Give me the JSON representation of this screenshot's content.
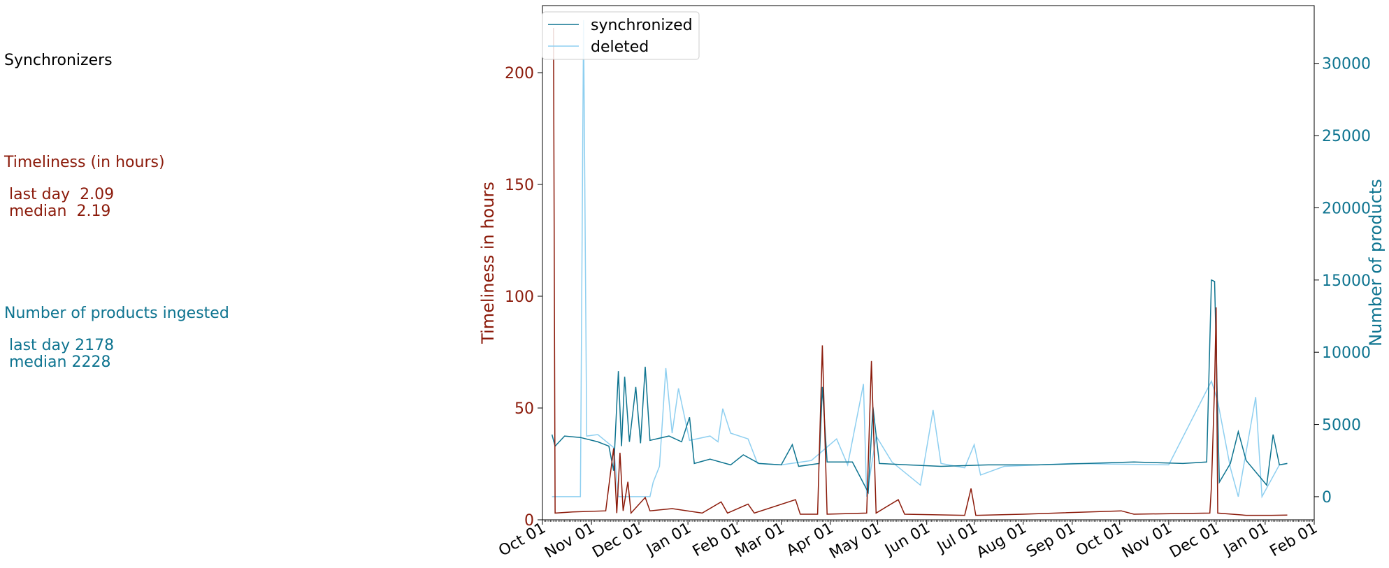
{
  "sidebar": {
    "title": "Synchronizers",
    "timeliness": {
      "title": "Timeliness (in hours)",
      "last_day": " last day  2.09",
      "median": " median  2.19"
    },
    "products": {
      "title": "Number of products ingested",
      "last_day": " last day 2178",
      "median": " median 2228"
    }
  },
  "colors": {
    "timeliness": "#8b1a0a",
    "synchronized": "#0e7490",
    "deleted": "#8ecff0"
  },
  "chart_data": {
    "type": "line",
    "xlabel": "",
    "x_ticks": [
      "Oct 01",
      "Nov 01",
      "Dec 01",
      "Jan 01",
      "Feb 01",
      "Mar 01",
      "Apr 01",
      "May 01",
      "Jun 01",
      "Jul 01",
      "Aug 01",
      "Sep 01",
      "Oct 01",
      "Nov 01",
      "Dec 01",
      "Jan 01",
      "Feb 01"
    ],
    "x_range": [
      "2022-10-01",
      "2024-02-01"
    ],
    "legend": {
      "placement": "top-left",
      "entries": [
        "synchronized",
        "deleted"
      ]
    },
    "left_axis": {
      "label": "Timeliness in hours",
      "ylim": [
        0,
        230
      ],
      "ticks": [
        0,
        50,
        100,
        150,
        200
      ],
      "series": {
        "name": "",
        "points": [
          [
            "2022-10-08",
            220
          ],
          [
            "2022-10-09",
            3
          ],
          [
            "2022-10-20",
            3.5
          ],
          [
            "2022-11-10",
            4
          ],
          [
            "2022-11-15",
            32
          ],
          [
            "2022-11-17",
            3
          ],
          [
            "2022-11-19",
            30
          ],
          [
            "2022-11-21",
            4
          ],
          [
            "2022-11-24",
            17
          ],
          [
            "2022-11-26",
            3
          ],
          [
            "2022-12-05",
            10
          ],
          [
            "2022-12-08",
            4
          ],
          [
            "2022-12-22",
            5
          ],
          [
            "2023-01-10",
            3
          ],
          [
            "2023-01-22",
            8
          ],
          [
            "2023-01-26",
            3
          ],
          [
            "2023-02-08",
            7
          ],
          [
            "2023-02-12",
            3
          ],
          [
            "2023-03-10",
            9
          ],
          [
            "2023-03-13",
            2.5
          ],
          [
            "2023-03-24",
            2.5
          ],
          [
            "2023-03-27",
            78
          ],
          [
            "2023-03-30",
            2.5
          ],
          [
            "2023-04-24",
            3
          ],
          [
            "2023-04-27",
            71
          ],
          [
            "2023-04-30",
            3
          ],
          [
            "2023-05-14",
            9
          ],
          [
            "2023-05-18",
            2.5
          ],
          [
            "2023-06-25",
            2
          ],
          [
            "2023-06-29",
            14
          ],
          [
            "2023-07-02",
            2
          ],
          [
            "2023-08-01",
            2.5
          ],
          [
            "2023-10-02",
            4
          ],
          [
            "2023-10-10",
            2.5
          ],
          [
            "2023-11-27",
            3
          ],
          [
            "2023-11-28",
            15
          ],
          [
            "2023-11-30",
            60
          ],
          [
            "2023-12-01",
            95
          ],
          [
            "2023-12-02",
            3
          ],
          [
            "2023-12-20",
            2
          ],
          [
            "2024-01-05",
            2
          ],
          [
            "2024-01-15",
            2.1
          ]
        ]
      }
    },
    "right_axis": {
      "label": "Number of products",
      "ylim": [
        -1600,
        34000
      ],
      "ticks": [
        0,
        5000,
        10000,
        15000,
        20000,
        25000,
        30000
      ],
      "series": [
        {
          "name": "synchronized",
          "points": [
            [
              "2022-10-07",
              4300
            ],
            [
              "2022-10-09",
              3500
            ],
            [
              "2022-10-15",
              4200
            ],
            [
              "2022-10-25",
              4100
            ],
            [
              "2022-11-05",
              3800
            ],
            [
              "2022-11-12",
              3500
            ],
            [
              "2022-11-15",
              1800
            ],
            [
              "2022-11-18",
              8700
            ],
            [
              "2022-11-20",
              3500
            ],
            [
              "2022-11-22",
              8300
            ],
            [
              "2022-11-25",
              3800
            ],
            [
              "2022-11-29",
              7600
            ],
            [
              "2022-12-02",
              3700
            ],
            [
              "2022-12-05",
              9000
            ],
            [
              "2022-12-08",
              3900
            ],
            [
              "2022-12-20",
              4200
            ],
            [
              "2022-12-28",
              3800
            ],
            [
              "2023-01-02",
              5500
            ],
            [
              "2023-01-05",
              2300
            ],
            [
              "2023-01-15",
              2600
            ],
            [
              "2023-01-28",
              2200
            ],
            [
              "2023-02-05",
              2900
            ],
            [
              "2023-02-15",
              2300
            ],
            [
              "2023-03-01",
              2200
            ],
            [
              "2023-03-08",
              3600
            ],
            [
              "2023-03-12",
              2100
            ],
            [
              "2023-03-25",
              2300
            ],
            [
              "2023-03-27",
              7600
            ],
            [
              "2023-03-30",
              2400
            ],
            [
              "2023-04-15",
              2400
            ],
            [
              "2023-04-25",
              300
            ],
            [
              "2023-04-28",
              6200
            ],
            [
              "2023-05-02",
              2300
            ],
            [
              "2023-05-20",
              2200
            ],
            [
              "2023-06-10",
              2100
            ],
            [
              "2023-07-10",
              2200
            ],
            [
              "2023-08-10",
              2200
            ],
            [
              "2023-09-10",
              2300
            ],
            [
              "2023-10-10",
              2400
            ],
            [
              "2023-11-10",
              2300
            ],
            [
              "2023-11-25",
              2400
            ],
            [
              "2023-11-28",
              15000
            ],
            [
              "2023-11-30",
              14900
            ],
            [
              "2023-12-03",
              1000
            ],
            [
              "2023-12-10",
              2300
            ],
            [
              "2023-12-15",
              4500
            ],
            [
              "2023-12-20",
              2500
            ],
            [
              "2024-01-02",
              800
            ],
            [
              "2024-01-06",
              4300
            ],
            [
              "2024-01-10",
              2200
            ],
            [
              "2024-01-15",
              2300
            ]
          ]
        },
        {
          "name": "deleted",
          "points": [
            [
              "2022-10-07",
              0
            ],
            [
              "2022-10-25",
              0
            ],
            [
              "2022-10-27",
              33000
            ],
            [
              "2022-10-29",
              4200
            ],
            [
              "2022-11-05",
              4300
            ],
            [
              "2022-11-15",
              3400
            ],
            [
              "2022-11-18",
              0
            ],
            [
              "2022-12-08",
              0
            ],
            [
              "2022-12-10",
              1000
            ],
            [
              "2022-12-14",
              2100
            ],
            [
              "2022-12-18",
              8900
            ],
            [
              "2022-12-22",
              4400
            ],
            [
              "2022-12-26",
              7500
            ],
            [
              "2023-01-02",
              3900
            ],
            [
              "2023-01-15",
              4200
            ],
            [
              "2023-01-20",
              3800
            ],
            [
              "2023-01-23",
              6100
            ],
            [
              "2023-01-28",
              4400
            ],
            [
              "2023-02-08",
              4000
            ],
            [
              "2023-02-14",
              2300
            ],
            [
              "2023-03-01",
              2200
            ],
            [
              "2023-03-20",
              2500
            ],
            [
              "2023-04-05",
              4000
            ],
            [
              "2023-04-12",
              2200
            ],
            [
              "2023-04-22",
              7800
            ],
            [
              "2023-04-24",
              0
            ],
            [
              "2023-04-30",
              4200
            ],
            [
              "2023-05-10",
              2400
            ],
            [
              "2023-05-28",
              800
            ],
            [
              "2023-06-05",
              6000
            ],
            [
              "2023-06-10",
              2300
            ],
            [
              "2023-06-25",
              2000
            ],
            [
              "2023-07-01",
              3600
            ],
            [
              "2023-07-05",
              1500
            ],
            [
              "2023-07-20",
              2100
            ],
            [
              "2023-09-01",
              2300
            ],
            [
              "2023-11-01",
              2200
            ],
            [
              "2023-11-28",
              8000
            ],
            [
              "2023-12-02",
              6600
            ],
            [
              "2023-12-10",
              2000
            ],
            [
              "2023-12-15",
              0
            ],
            [
              "2023-12-26",
              6900
            ],
            [
              "2023-12-30",
              0
            ],
            [
              "2024-01-10",
              2200
            ],
            [
              "2024-01-15",
              2300
            ]
          ]
        }
      ]
    }
  }
}
